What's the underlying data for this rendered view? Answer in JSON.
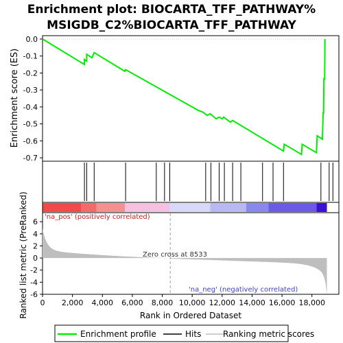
{
  "chart_data": {
    "type": "line",
    "title_line1": "Enrichment plot: BIOCARTA_TFF_PATHWAY%",
    "title_line2": "MSIGDB_C2%BIOCARTA_TFF_PATHWAY",
    "es_ylabel": "Enrichment score (ES)",
    "rank_ylabel": "Ranked list metric (PreRanked)",
    "xlabel": "Rank in Ordered Dataset",
    "xlim": [
      0,
      19800
    ],
    "es_ylim": [
      -0.72,
      0.02
    ],
    "rank_ylim": [
      -6,
      7.5
    ],
    "x_ticks": [
      0,
      2000,
      4000,
      6000,
      8000,
      10000,
      12000,
      14000,
      16000,
      18000
    ],
    "x_tick_labels": [
      "0",
      "2,000",
      "4,000",
      "6,000",
      "8,000",
      "10,000",
      "12,000",
      "14,000",
      "16,000",
      "18,000"
    ],
    "es_ticks": [
      0.0,
      -0.1,
      -0.2,
      -0.3,
      -0.4,
      -0.5,
      -0.6,
      -0.7
    ],
    "es_tick_labels": [
      "0.0",
      "-0.1",
      "-0.2",
      "-0.3",
      "-0.4",
      "-0.5",
      "-0.6",
      "-0.7"
    ],
    "rank_ticks": [
      6,
      4,
      2,
      0,
      -2,
      -4,
      -6
    ],
    "rank_tick_labels": [
      "6",
      "4",
      "2",
      "0",
      "-2",
      "-4",
      "-6"
    ],
    "hits": [
      2800,
      2950,
      3450,
      5550,
      7600,
      8150,
      8500,
      10900,
      11250,
      11800,
      12150,
      12700,
      13250,
      14700,
      15400,
      16100,
      18600,
      19150,
      19400
    ],
    "enrichment_profile": [
      [
        0,
        0.0
      ],
      [
        2800,
        -0.15
      ],
      [
        2800,
        -0.12
      ],
      [
        2950,
        -0.13
      ],
      [
        2950,
        -0.09
      ],
      [
        3300,
        -0.11
      ],
      [
        3450,
        -0.08
      ],
      [
        5500,
        -0.19
      ],
      [
        5550,
        -0.18
      ],
      [
        10400,
        -0.42
      ],
      [
        10700,
        -0.43
      ],
      [
        11000,
        -0.45
      ],
      [
        11200,
        -0.44
      ],
      [
        11600,
        -0.47
      ],
      [
        11800,
        -0.46
      ],
      [
        12000,
        -0.47
      ],
      [
        12100,
        -0.46
      ],
      [
        12550,
        -0.49
      ],
      [
        12700,
        -0.48
      ],
      [
        16100,
        -0.66
      ],
      [
        16150,
        -0.62
      ],
      [
        17300,
        -0.68
      ],
      [
        17350,
        -0.62
      ],
      [
        18300,
        -0.67
      ],
      [
        18350,
        -0.57
      ],
      [
        18700,
        -0.59
      ],
      [
        18750,
        -0.43
      ],
      [
        18780,
        -0.44
      ],
      [
        18800,
        -0.23
      ],
      [
        18850,
        -0.24
      ],
      [
        18870,
        0.0
      ]
    ],
    "zero_cross": 8533,
    "zero_cross_label": "Zero cross at 8533",
    "pos_label": "'na_pos' (positively correlated)",
    "neg_label": "'na_neg' (negatively correlated)",
    "legend": {
      "enrichment": "Enrichment profile",
      "hits": "Hits",
      "ranking": "Ranking metric scores"
    },
    "colors": {
      "profile": "#00ee00",
      "hits": "#000000",
      "ranking_fill": "#bebebe",
      "zero_line": "#a0a0a0"
    },
    "heat_bar": [
      {
        "from": 0,
        "to": 2600,
        "color": "#f04a4a"
      },
      {
        "from": 2600,
        "to": 3600,
        "color": "#f46a6a"
      },
      {
        "from": 3600,
        "to": 5500,
        "color": "#f59090"
      },
      {
        "from": 5500,
        "to": 8500,
        "color": "#f8c0e0"
      },
      {
        "from": 8500,
        "to": 11200,
        "color": "#d8d8f8"
      },
      {
        "from": 11200,
        "to": 13600,
        "color": "#b8b8f2"
      },
      {
        "from": 13600,
        "to": 15100,
        "color": "#8888ee"
      },
      {
        "from": 15100,
        "to": 18300,
        "color": "#6a5ae6"
      },
      {
        "from": 18300,
        "to": 19000,
        "color": "#3a10d8"
      }
    ]
  }
}
